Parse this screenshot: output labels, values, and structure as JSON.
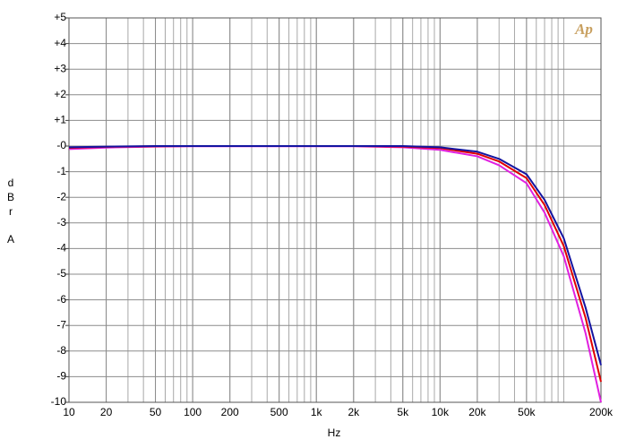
{
  "chart_data": {
    "type": "line",
    "x_label": "Hz",
    "y_label": "dBr A",
    "logo": "Ap",
    "xscale": "log",
    "grid": true,
    "minor_grid": true,
    "xlim": [
      10,
      200000
    ],
    "xticks": [
      10,
      20,
      50,
      100,
      200,
      500,
      {
        "value": 1000,
        "label": "1k"
      },
      {
        "value": 2000,
        "label": "2k"
      },
      {
        "value": 5000,
        "label": "5k"
      },
      {
        "value": 10000,
        "label": "10k"
      },
      {
        "value": 20000,
        "label": "20k"
      },
      {
        "value": 50000,
        "label": "50k"
      },
      {
        "value": 200000,
        "label": "200k"
      }
    ],
    "ylim": [
      -10,
      5
    ],
    "yticks": [
      {
        "value": 5,
        "label": "+5"
      },
      {
        "value": 4,
        "label": "+4"
      },
      {
        "value": 3,
        "label": "+3"
      },
      {
        "value": 2,
        "label": "+2"
      },
      {
        "value": 1,
        "label": "+1"
      },
      {
        "value": 0,
        "label": "-0"
      },
      -1,
      -2,
      -3,
      -4,
      -5,
      -6,
      -7,
      -8,
      -9,
      -10
    ],
    "x": [
      10,
      20,
      50,
      100,
      200,
      500,
      1000,
      2000,
      5000,
      10000,
      20000,
      30000,
      50000,
      70000,
      100000,
      150000,
      200000
    ],
    "series": [
      {
        "color": "#e020e0",
        "values": [
          -0.12,
          -0.06,
          -0.02,
          -0.01,
          -0.01,
          -0.01,
          -0.01,
          -0.01,
          -0.05,
          -0.15,
          -0.4,
          -0.75,
          -1.45,
          -2.6,
          -4.3,
          -7.3,
          -10
        ]
      },
      {
        "color": "#e00000",
        "values": [
          -0.07,
          -0.03,
          -0.01,
          0,
          0,
          0,
          0,
          0,
          -0.02,
          -0.08,
          -0.3,
          -0.6,
          -1.25,
          -2.3,
          -3.9,
          -6.7,
          -9.2
        ]
      },
      {
        "color": "#1414a0",
        "values": [
          -0.05,
          -0.02,
          0,
          0,
          0,
          0,
          0,
          0,
          0,
          -0.05,
          -0.22,
          -0.5,
          -1.1,
          -2.1,
          -3.6,
          -6.3,
          -8.55
        ]
      }
    ]
  }
}
